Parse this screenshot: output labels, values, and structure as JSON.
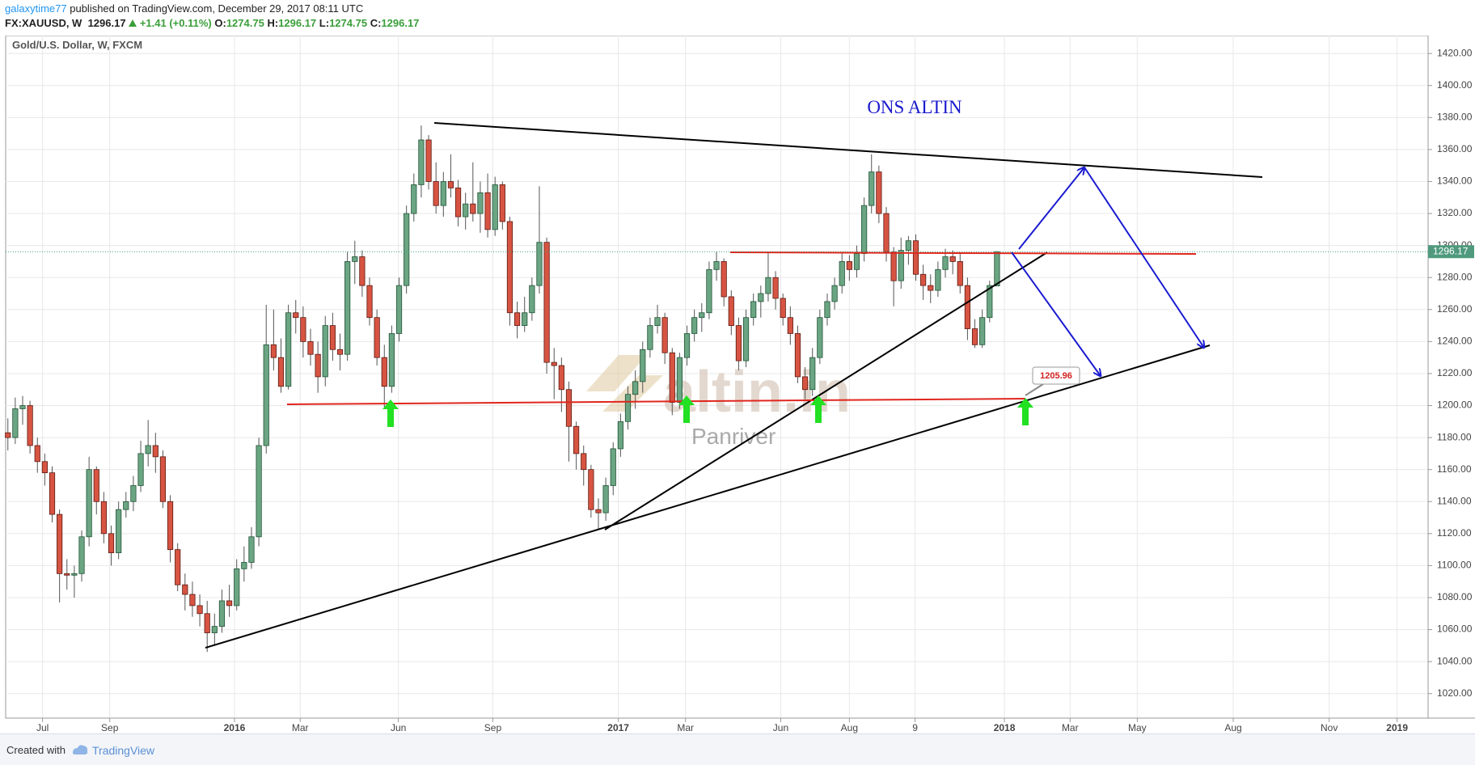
{
  "header": {
    "user": "galaxytime77",
    "published": "published on TradingView.com, December 29, 2017 08:11 UTC",
    "symbol": "FX:XAUUSD, W",
    "last": 1296.17,
    "change": "+1.41 (+0.11%)",
    "o_label": "O:",
    "o": 1274.75,
    "h_label": "H:",
    "h": 1296.17,
    "l_label": "L:",
    "l": 1274.75,
    "c_label": "C:",
    "c": 1296.17
  },
  "footer": {
    "created": "Created with",
    "brand": "TradingView"
  },
  "chart_data": {
    "type": "candlestick",
    "title": "Gold/U.S. Dollar, W, FXCM",
    "annotations": {
      "heading": "ONS ALTIN",
      "callout": "1205.96",
      "watermark": "altin.in",
      "watermark_sub": "Panriver"
    },
    "up_color": "#6ba583",
    "down_color": "#d75442",
    "grid": true,
    "xlim": [
      -0.3,
      192.4
    ],
    "xticks": [
      {
        "value": 4.7,
        "label": "Jul"
      },
      {
        "value": 13.8,
        "label": "Sep"
      },
      {
        "value": 30.7,
        "label": "2016"
      },
      {
        "value": 39.6,
        "label": "Mar"
      },
      {
        "value": 52.9,
        "label": "Jun"
      },
      {
        "value": 65.7,
        "label": "Sep"
      },
      {
        "value": 82.7,
        "label": "2017"
      },
      {
        "value": 91.8,
        "label": "Mar"
      },
      {
        "value": 104.7,
        "label": "Jun"
      },
      {
        "value": 114,
        "label": "Aug"
      },
      {
        "value": 122.9,
        "label": "9"
      },
      {
        "value": 135,
        "label": "2018"
      },
      {
        "value": 143.9,
        "label": "Mar"
      },
      {
        "value": 153,
        "label": "May"
      },
      {
        "value": 166,
        "label": "Aug"
      },
      {
        "value": 179,
        "label": "Nov"
      },
      {
        "value": 188.2,
        "label": "2019"
      }
    ],
    "ylim": [
      1004.7,
      1431.2
    ],
    "yticks": [
      {
        "value": 1020,
        "label": "1020.00"
      },
      {
        "value": 1040,
        "label": "1040.00"
      },
      {
        "value": 1060,
        "label": "1060.00"
      },
      {
        "value": 1080,
        "label": "1080.00"
      },
      {
        "value": 1100,
        "label": "1100.00"
      },
      {
        "value": 1120,
        "label": "1120.00"
      },
      {
        "value": 1140,
        "label": "1140.00"
      },
      {
        "value": 1160,
        "label": "1160.00"
      },
      {
        "value": 1180,
        "label": "1180.00"
      },
      {
        "value": 1200,
        "label": "1200.00"
      },
      {
        "value": 1220,
        "label": "1220.00"
      },
      {
        "value": 1240,
        "label": "1240.00"
      },
      {
        "value": 1260,
        "label": "1260.00"
      },
      {
        "value": 1280,
        "label": "1280.00"
      },
      {
        "value": 1300,
        "label": "1300.00"
      },
      {
        "value": 1320,
        "label": "1320.00"
      },
      {
        "value": 1340,
        "label": "1340.00"
      },
      {
        "value": 1360,
        "label": "1360.00"
      },
      {
        "value": 1380,
        "label": "1380.00"
      },
      {
        "value": 1400,
        "label": "1400.00"
      },
      {
        "value": 1420,
        "label": "1420.00"
      }
    ],
    "candles": [
      [
        1183,
        1192,
        1172,
        1180
      ],
      [
        1180,
        1205,
        1176,
        1198
      ],
      [
        1198,
        1206,
        1188,
        1200
      ],
      [
        1200,
        1203,
        1170,
        1175
      ],
      [
        1175,
        1180,
        1158,
        1165
      ],
      [
        1165,
        1170,
        1150,
        1158
      ],
      [
        1158,
        1162,
        1127,
        1132
      ],
      [
        1132,
        1135,
        1077,
        1095
      ],
      [
        1095,
        1104,
        1085,
        1094
      ],
      [
        1094,
        1100,
        1080,
        1095
      ],
      [
        1095,
        1122,
        1090,
        1118
      ],
      [
        1118,
        1168,
        1112,
        1160
      ],
      [
        1160,
        1162,
        1132,
        1140
      ],
      [
        1140,
        1146,
        1114,
        1120
      ],
      [
        1120,
        1125,
        1100,
        1108
      ],
      [
        1108,
        1140,
        1104,
        1135
      ],
      [
        1135,
        1146,
        1130,
        1140
      ],
      [
        1140,
        1156,
        1134,
        1150
      ],
      [
        1150,
        1178,
        1146,
        1170
      ],
      [
        1170,
        1191,
        1162,
        1175
      ],
      [
        1175,
        1183,
        1158,
        1168
      ],
      [
        1168,
        1172,
        1136,
        1140
      ],
      [
        1140,
        1144,
        1102,
        1110
      ],
      [
        1110,
        1114,
        1084,
        1088
      ],
      [
        1088,
        1095,
        1072,
        1082
      ],
      [
        1082,
        1090,
        1068,
        1075
      ],
      [
        1075,
        1082,
        1062,
        1070
      ],
      [
        1070,
        1078,
        1046,
        1058
      ],
      [
        1058,
        1070,
        1050,
        1062
      ],
      [
        1062,
        1085,
        1058,
        1078
      ],
      [
        1078,
        1088,
        1068,
        1075
      ],
      [
        1075,
        1104,
        1072,
        1098
      ],
      [
        1098,
        1112,
        1090,
        1102
      ],
      [
        1102,
        1124,
        1098,
        1118
      ],
      [
        1118,
        1180,
        1112,
        1175
      ],
      [
        1175,
        1263,
        1170,
        1238
      ],
      [
        1238,
        1260,
        1222,
        1230
      ],
      [
        1230,
        1242,
        1208,
        1212
      ],
      [
        1212,
        1263,
        1210,
        1258
      ],
      [
        1258,
        1266,
        1245,
        1255
      ],
      [
        1255,
        1262,
        1230,
        1240
      ],
      [
        1240,
        1248,
        1225,
        1232
      ],
      [
        1232,
        1240,
        1208,
        1218
      ],
      [
        1218,
        1256,
        1212,
        1250
      ],
      [
        1250,
        1258,
        1228,
        1235
      ],
      [
        1235,
        1245,
        1222,
        1232
      ],
      [
        1232,
        1296,
        1228,
        1290
      ],
      [
        1290,
        1303,
        1276,
        1293
      ],
      [
        1293,
        1297,
        1268,
        1275
      ],
      [
        1275,
        1280,
        1250,
        1255
      ],
      [
        1255,
        1260,
        1225,
        1230
      ],
      [
        1230,
        1238,
        1199,
        1212
      ],
      [
        1212,
        1250,
        1208,
        1245
      ],
      [
        1245,
        1280,
        1240,
        1275
      ],
      [
        1275,
        1325,
        1270,
        1320
      ],
      [
        1320,
        1345,
        1315,
        1338
      ],
      [
        1338,
        1375,
        1330,
        1366
      ],
      [
        1366,
        1369,
        1335,
        1340
      ],
      [
        1340,
        1352,
        1320,
        1325
      ],
      [
        1325,
        1346,
        1318,
        1340
      ],
      [
        1340,
        1357,
        1330,
        1336
      ],
      [
        1336,
        1341,
        1312,
        1318
      ],
      [
        1318,
        1333,
        1310,
        1326
      ],
      [
        1326,
        1352,
        1315,
        1320
      ],
      [
        1320,
        1340,
        1308,
        1333
      ],
      [
        1333,
        1345,
        1305,
        1310
      ],
      [
        1310,
        1343,
        1306,
        1338
      ],
      [
        1338,
        1340,
        1310,
        1315
      ],
      [
        1315,
        1318,
        1250,
        1258
      ],
      [
        1258,
        1265,
        1242,
        1250
      ],
      [
        1250,
        1268,
        1246,
        1258
      ],
      [
        1258,
        1280,
        1253,
        1275
      ],
      [
        1275,
        1337,
        1270,
        1302
      ],
      [
        1302,
        1305,
        1220,
        1227
      ],
      [
        1227,
        1236,
        1204,
        1225
      ],
      [
        1225,
        1230,
        1196,
        1210
      ],
      [
        1210,
        1215,
        1165,
        1187
      ],
      [
        1187,
        1190,
        1160,
        1170
      ],
      [
        1170,
        1175,
        1150,
        1160
      ],
      [
        1160,
        1163,
        1130,
        1135
      ],
      [
        1135,
        1142,
        1123,
        1133
      ],
      [
        1133,
        1155,
        1128,
        1150
      ],
      [
        1150,
        1177,
        1144,
        1173
      ],
      [
        1173,
        1195,
        1168,
        1190
      ],
      [
        1190,
        1212,
        1185,
        1207
      ],
      [
        1207,
        1222,
        1198,
        1215
      ],
      [
        1215,
        1240,
        1208,
        1235
      ],
      [
        1235,
        1255,
        1230,
        1250
      ],
      [
        1250,
        1263,
        1245,
        1255
      ],
      [
        1255,
        1258,
        1226,
        1233
      ],
      [
        1233,
        1236,
        1194,
        1202
      ],
      [
        1202,
        1233,
        1198,
        1230
      ],
      [
        1230,
        1250,
        1225,
        1245
      ],
      [
        1245,
        1260,
        1240,
        1255
      ],
      [
        1255,
        1264,
        1246,
        1258
      ],
      [
        1258,
        1290,
        1254,
        1285
      ],
      [
        1285,
        1296,
        1278,
        1290
      ],
      [
        1290,
        1292,
        1262,
        1268
      ],
      [
        1268,
        1272,
        1244,
        1250
      ],
      [
        1250,
        1255,
        1222,
        1228
      ],
      [
        1228,
        1260,
        1224,
        1255
      ],
      [
        1255,
        1270,
        1250,
        1265
      ],
      [
        1265,
        1275,
        1255,
        1270
      ],
      [
        1270,
        1296,
        1265,
        1280
      ],
      [
        1280,
        1284,
        1260,
        1267
      ],
      [
        1267,
        1270,
        1250,
        1255
      ],
      [
        1255,
        1262,
        1238,
        1245
      ],
      [
        1245,
        1250,
        1214,
        1218
      ],
      [
        1218,
        1224,
        1204,
        1210
      ],
      [
        1210,
        1236,
        1206,
        1230
      ],
      [
        1230,
        1260,
        1226,
        1255
      ],
      [
        1255,
        1270,
        1250,
        1265
      ],
      [
        1265,
        1280,
        1260,
        1275
      ],
      [
        1275,
        1295,
        1270,
        1290
      ],
      [
        1290,
        1294,
        1278,
        1285
      ],
      [
        1285,
        1300,
        1280,
        1295
      ],
      [
        1295,
        1330,
        1290,
        1325
      ],
      [
        1325,
        1357,
        1320,
        1346
      ],
      [
        1346,
        1350,
        1314,
        1320
      ],
      [
        1320,
        1324,
        1290,
        1296
      ],
      [
        1296,
        1299,
        1262,
        1278
      ],
      [
        1278,
        1305,
        1273,
        1297
      ],
      [
        1297,
        1306,
        1288,
        1303
      ],
      [
        1303,
        1307,
        1278,
        1282
      ],
      [
        1282,
        1288,
        1266,
        1275
      ],
      [
        1275,
        1282,
        1264,
        1272
      ],
      [
        1272,
        1290,
        1268,
        1285
      ],
      [
        1285,
        1298,
        1280,
        1293
      ],
      [
        1293,
        1297,
        1282,
        1290
      ],
      [
        1290,
        1295,
        1270,
        1275
      ],
      [
        1275,
        1280,
        1241,
        1248
      ],
      [
        1248,
        1254,
        1236,
        1238
      ],
      [
        1238,
        1260,
        1236,
        1255
      ],
      [
        1255,
        1278,
        1252,
        1275
      ],
      [
        1274.75,
        1296.17,
        1274.75,
        1296.17
      ]
    ]
  }
}
